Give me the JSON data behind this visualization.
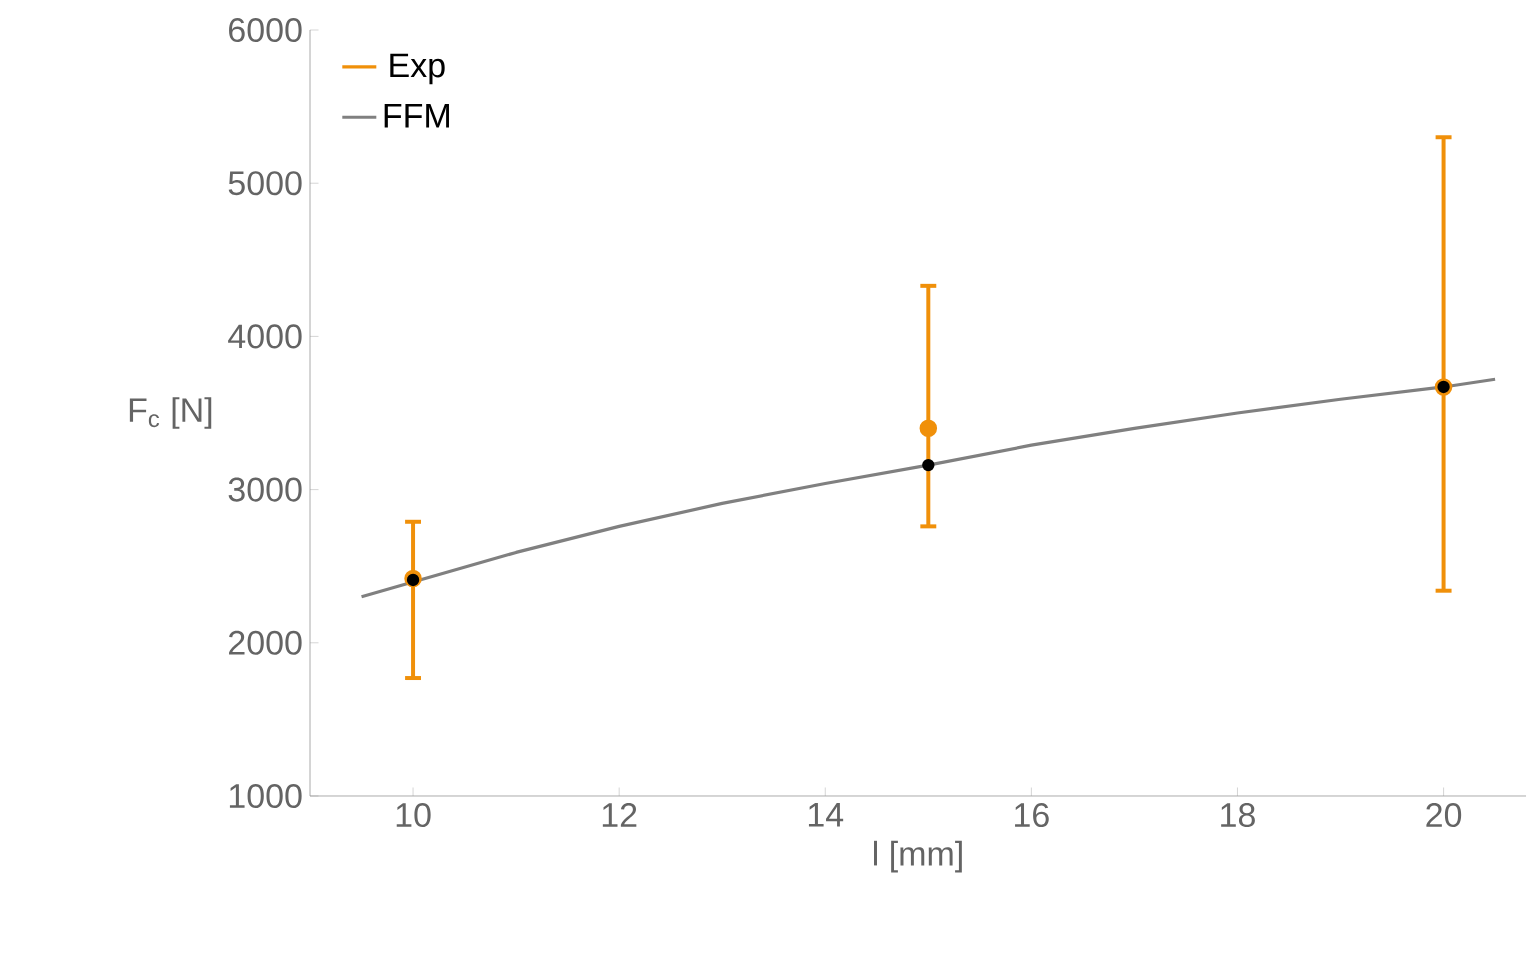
{
  "chart_data": {
    "type": "line",
    "xlabel": "l [mm]",
    "ylabel": "F$_{c}$ [N]",
    "xlim": [
      9,
      20.8
    ],
    "ylim": [
      1000,
      6000
    ],
    "xticks": [
      10,
      12,
      14,
      16,
      18,
      20
    ],
    "yticks": [
      1000,
      2000,
      3000,
      4000,
      5000,
      6000
    ],
    "legend": "top left",
    "series": [
      {
        "name": "Exp",
        "type": "scatter",
        "color": "#f0900a",
        "marker": "circle",
        "x": [
          10,
          15,
          20
        ],
        "values": [
          2420,
          3400,
          3670
        ],
        "errors": [
          [
            1770,
            2790
          ],
          [
            2760,
            4330
          ],
          [
            2340,
            5300
          ]
        ]
      },
      {
        "name": "FFM",
        "color": "#808080",
        "marker": "none",
        "x": [
          9.5,
          11,
          12,
          13,
          14,
          15,
          16,
          17,
          18,
          19,
          20,
          20.5
        ],
        "values": [
          2300,
          2590,
          2760,
          2910,
          3040,
          3160,
          3290,
          3400,
          3500,
          3590,
          3670,
          3720
        ]
      },
      {
        "type": "scatter",
        "color": "#000000",
        "marker": "circle",
        "x": [
          10,
          15,
          20
        ],
        "values": [
          2410,
          3160,
          3670
        ]
      }
    ]
  }
}
